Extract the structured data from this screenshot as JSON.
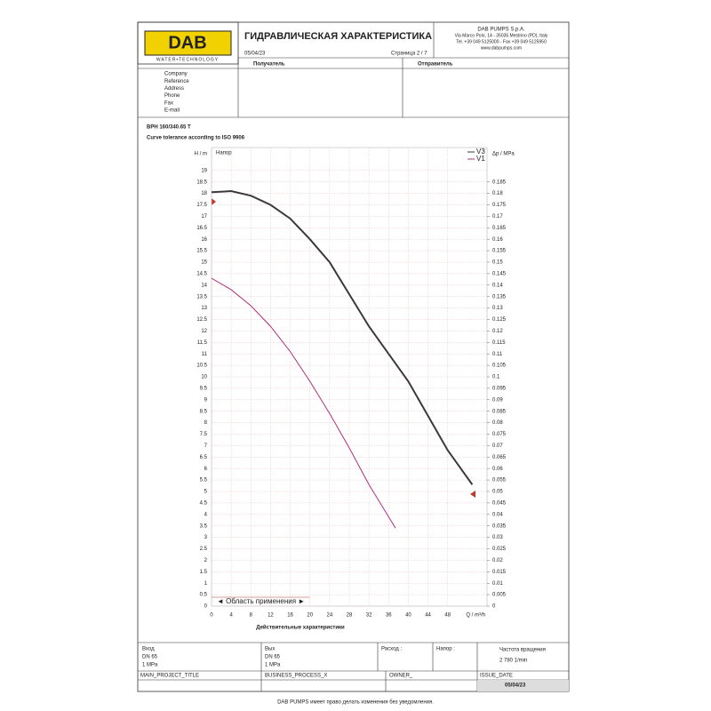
{
  "header": {
    "logo": "DAB",
    "logo_tagline": "WATER•TECHNOLOGY",
    "title": "ГИДРАВЛИЧЕСКАЯ ХАРАКТЕРИСТИКА",
    "date": "05/04/23",
    "page": "Страница 2 / 7",
    "company_lines": [
      "DAB PUMPS S.p.A.",
      "Via Marco Polo, 14 - 35035 Mestrino (PD), Italy",
      "Tel. +39 049 5125000 - Fax +39 049 5125950",
      "www.dabpumps.com"
    ]
  },
  "contacts": {
    "recipient": "Получатель",
    "sender": "Отправитель",
    "fields": [
      "Company",
      "Reference",
      "Address",
      "Phone",
      "Fax",
      "E-mail"
    ]
  },
  "product": {
    "model": "BPH 160/340.65 T",
    "tolerance": "Curve tolerance according to ISO 9906"
  },
  "chart_data": {
    "type": "line",
    "title": "Напор",
    "x_label": "Q / m³/h",
    "y_label": "H / m",
    "y2_label": "Δp / MPa",
    "caption": "Действительные характеристики",
    "annotation": "◄ Область применения ►",
    "xlim": [
      0,
      56
    ],
    "xticks": [
      0,
      4,
      8,
      12,
      16,
      20,
      24,
      28,
      32,
      36,
      40,
      44,
      48
    ],
    "ylim": [
      0,
      20
    ],
    "yticks": [
      0,
      0.5,
      1,
      1.5,
      2,
      2.5,
      3,
      3.5,
      4,
      4.5,
      5,
      5.5,
      6,
      6.5,
      7,
      7.5,
      8,
      8.5,
      9,
      9.5,
      10,
      10.5,
      11,
      11.5,
      12,
      12.5,
      13,
      13.5,
      14,
      14.5,
      15,
      15.5,
      16,
      16.5,
      17,
      17.5,
      18,
      18.5,
      19
    ],
    "y2lim": [
      0,
      0.2
    ],
    "y2ticks": [
      0,
      0.005,
      0.01,
      0.015,
      0.02,
      0.025,
      0.03,
      0.035,
      0.04,
      0.045,
      0.05,
      0.055,
      0.06,
      0.065,
      0.07,
      0.075,
      0.08,
      0.085,
      0.09,
      0.095,
      0.1,
      0.105,
      0.11,
      0.115,
      0.12,
      0.125,
      0.13,
      0.135,
      0.14,
      0.145,
      0.15,
      0.155,
      0.16,
      0.165,
      0.17,
      0.175,
      0.18,
      0.185
    ],
    "grid": true,
    "legend": "upper right",
    "series": [
      {
        "name": "V3",
        "color": "#3a3a3a",
        "x": [
          0,
          4,
          8,
          12,
          16,
          20,
          24,
          28,
          32,
          36,
          40,
          44,
          48,
          53
        ],
        "values": [
          18.05,
          18.1,
          17.9,
          17.5,
          16.9,
          16.0,
          15.0,
          13.6,
          12.2,
          11.0,
          9.8,
          8.3,
          6.8,
          5.3
        ]
      },
      {
        "name": "V1",
        "color": "#b0307a",
        "x": [
          0,
          4,
          8,
          12,
          16,
          20,
          24,
          28,
          32,
          37.4
        ],
        "values": [
          14.3,
          13.8,
          13.1,
          12.2,
          11.1,
          9.8,
          8.4,
          6.9,
          5.3,
          3.4
        ]
      }
    ]
  },
  "footer_table": {
    "inlet": [
      "Вход",
      "DN 65",
      "1 MPa"
    ],
    "outlet": [
      "Вых",
      "DN 65",
      "1 MPa"
    ],
    "flow": "Расход :",
    "head": "Напор :",
    "speed": [
      "Частота вращения",
      "2 780 1/min"
    ],
    "project": "MAIN_PROJECT_TITLE",
    "process": "BUSINESS_PROCESS_X",
    "owner": "OWNER_",
    "issue_date": [
      "ISSUE_DATE",
      "05/04/23"
    ]
  },
  "disclaimer": "DAB PUMPS имеет право делать изменения без уведомления."
}
